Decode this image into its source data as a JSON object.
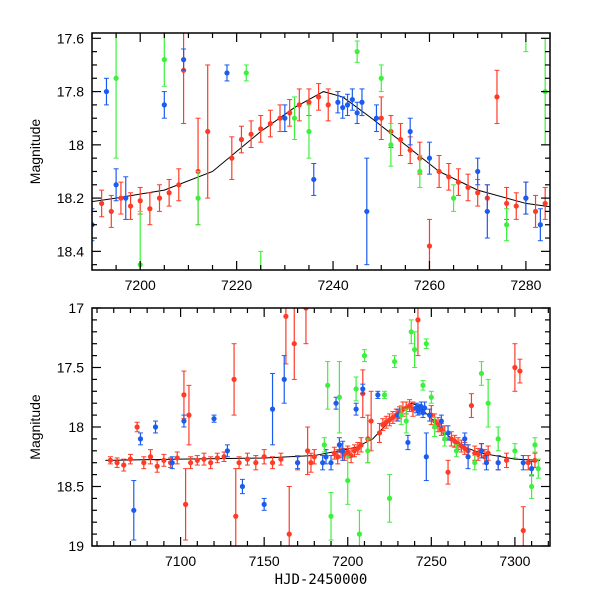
{
  "chart_data": [
    {
      "type": "scatter",
      "title": "",
      "xlabel": "",
      "ylabel": "Magnitude",
      "xlim": [
        7190,
        7285
      ],
      "ylim": [
        18.47,
        17.58
      ],
      "x_ticks": [
        "7200",
        "7220",
        "7240",
        "7260",
        "7280"
      ],
      "y_ticks": [
        "17.6",
        "17.8",
        "18",
        "18.2",
        "18.4"
      ],
      "grid": false
    },
    {
      "type": "scatter",
      "title": "",
      "xlabel": "HJD-2450000",
      "ylabel": "Magnitude",
      "xlim": [
        7047,
        7321
      ],
      "ylim": [
        19,
        17
      ],
      "x_ticks": [
        "7100",
        "7150",
        "7200",
        "7250",
        "7300"
      ],
      "y_ticks": [
        "17",
        "17.5",
        "18",
        "18.5",
        "19"
      ],
      "grid": false
    }
  ],
  "series": [
    {
      "name": "red",
      "color": "#ff3b26",
      "points": [
        [
          7058,
          18.28,
          0.03
        ],
        [
          7062,
          18.3,
          0.04
        ],
        [
          7066,
          18.32,
          0.05
        ],
        [
          7070,
          18.27,
          0.04
        ],
        [
          7074,
          18.0,
          0.04
        ],
        [
          7078,
          18.3,
          0.05
        ],
        [
          7082,
          18.25,
          0.06
        ],
        [
          7086,
          18.33,
          0.05
        ],
        [
          7090,
          18.28,
          0.05
        ],
        [
          7094,
          18.3,
          0.04
        ],
        [
          7098,
          18.26,
          0.05
        ],
        [
          7102,
          17.73,
          0.2
        ],
        [
          7103,
          18.65,
          0.3
        ],
        [
          7105,
          17.9,
          0.25
        ],
        [
          7106,
          18.3,
          0.05
        ],
        [
          7110,
          18.28,
          0.04
        ],
        [
          7114,
          18.27,
          0.05
        ],
        [
          7118,
          18.3,
          0.05
        ],
        [
          7122,
          18.26,
          0.04
        ],
        [
          7126,
          18.25,
          0.04
        ],
        [
          7132,
          17.6,
          0.3
        ],
        [
          7133,
          18.75,
          0.4
        ],
        [
          7135,
          18.3,
          0.05
        ],
        [
          7140,
          18.27,
          0.05
        ],
        [
          7145,
          18.3,
          0.06
        ],
        [
          7150,
          18.25,
          0.06
        ],
        [
          7155,
          18.3,
          0.05
        ],
        [
          7160,
          18.27,
          0.05
        ],
        [
          7163,
          17.07,
          0.4
        ],
        [
          7165,
          18.9,
          0.4
        ],
        [
          7168,
          17.3,
          0.3
        ],
        [
          7170,
          18.3,
          0.06
        ],
        [
          7175,
          17.0,
          0.3
        ],
        [
          7176,
          18.2,
          0.2
        ],
        [
          7178,
          18.3,
          0.08
        ],
        [
          7180,
          18.25,
          0.06
        ],
        [
          7192,
          18.22,
          0.05
        ],
        [
          7194,
          18.25,
          0.06
        ],
        [
          7196,
          18.2,
          0.06
        ],
        [
          7198,
          18.23,
          0.05
        ],
        [
          7200,
          18.21,
          0.05
        ],
        [
          7202,
          18.24,
          0.06
        ],
        [
          7204,
          18.2,
          0.05
        ],
        [
          7206,
          18.18,
          0.05
        ],
        [
          7208,
          18.15,
          0.06
        ],
        [
          7209,
          17.72,
          0.2
        ],
        [
          7212,
          18.1,
          0.2
        ],
        [
          7214,
          17.95,
          0.25
        ],
        [
          7219,
          18.05,
          0.08
        ],
        [
          7221,
          17.98,
          0.05
        ],
        [
          7223,
          17.96,
          0.05
        ],
        [
          7225,
          17.94,
          0.05
        ],
        [
          7227,
          17.92,
          0.05
        ],
        [
          7229,
          17.9,
          0.05
        ],
        [
          7231,
          17.88,
          0.05
        ],
        [
          7233,
          17.85,
          0.06
        ],
        [
          7235,
          17.84,
          0.05
        ],
        [
          7237,
          17.82,
          0.05
        ],
        [
          7239,
          17.85,
          0.06
        ],
        [
          7242,
          17.1,
          0.3
        ],
        [
          7250,
          17.9,
          0.08
        ],
        [
          7252,
          17.95,
          0.06
        ],
        [
          7254,
          17.98,
          0.06
        ],
        [
          7256,
          18.02,
          0.05
        ],
        [
          7258,
          18.05,
          0.06
        ],
        [
          7260,
          18.38,
          0.1
        ],
        [
          7262,
          18.1,
          0.06
        ],
        [
          7264,
          18.12,
          0.05
        ],
        [
          7266,
          18.14,
          0.05
        ],
        [
          7268,
          18.16,
          0.05
        ],
        [
          7270,
          18.18,
          0.05
        ],
        [
          7272,
          18.2,
          0.05
        ],
        [
          7274,
          17.82,
          0.1
        ],
        [
          7276,
          18.22,
          0.06
        ],
        [
          7278,
          18.23,
          0.05
        ],
        [
          7280,
          18.2,
          0.06
        ],
        [
          7282,
          18.25,
          0.06
        ],
        [
          7284,
          18.22,
          0.06
        ],
        [
          7290,
          18.3,
          0.06
        ],
        [
          7295,
          18.28,
          0.06
        ],
        [
          7300,
          17.5,
          0.2
        ],
        [
          7303,
          17.53,
          0.1
        ],
        [
          7305,
          18.87,
          0.2
        ],
        [
          7308,
          18.3,
          0.06
        ],
        [
          7312,
          18.28,
          0.06
        ]
      ]
    },
    {
      "name": "blue",
      "color": "#1a5cf0",
      "points": [
        [
          7072,
          18.7,
          0.25
        ],
        [
          7076,
          18.1,
          0.05
        ],
        [
          7085,
          18.0,
          0.05
        ],
        [
          7095,
          18.3,
          0.05
        ],
        [
          7102,
          17.95,
          0.05
        ],
        [
          7120,
          17.93,
          0.03
        ],
        [
          7128,
          18.2,
          0.05
        ],
        [
          7137,
          18.5,
          0.06
        ],
        [
          7150,
          18.65,
          0.05
        ],
        [
          7155,
          17.85,
          0.3
        ],
        [
          7162,
          17.6,
          0.2
        ],
        [
          7170,
          18.3,
          0.05
        ],
        [
          7185,
          18.3,
          0.06
        ],
        [
          7187,
          18.25,
          0.06
        ],
        [
          7190,
          18.3,
          0.06
        ],
        [
          7193,
          17.8,
          0.05
        ],
        [
          7195,
          18.15,
          0.06
        ],
        [
          7197,
          18.2,
          0.08
        ],
        [
          7205,
          17.85,
          0.05
        ],
        [
          7209,
          17.68,
          0.04
        ],
        [
          7218,
          17.73,
          0.03
        ],
        [
          7230,
          17.9,
          0.05
        ],
        [
          7236,
          18.13,
          0.06
        ],
        [
          7241,
          17.84,
          0.04
        ],
        [
          7242,
          17.86,
          0.04
        ],
        [
          7243,
          17.85,
          0.04
        ],
        [
          7244,
          17.83,
          0.04
        ],
        [
          7245,
          17.88,
          0.04
        ],
        [
          7246,
          17.84,
          0.05
        ],
        [
          7247,
          18.25,
          0.2
        ],
        [
          7249,
          17.9,
          0.05
        ],
        [
          7256,
          17.95,
          0.05
        ],
        [
          7260,
          18.05,
          0.06
        ],
        [
          7270,
          18.1,
          0.05
        ],
        [
          7272,
          18.25,
          0.1
        ],
        [
          7280,
          18.2,
          0.06
        ],
        [
          7283,
          18.3,
          0.06
        ],
        [
          7290,
          18.3,
          0.06
        ],
        [
          7305,
          18.3,
          0.06
        ],
        [
          7310,
          18.35,
          0.06
        ]
      ]
    },
    {
      "name": "green",
      "color": "#3ef03e",
      "points": [
        [
          7186,
          18.15,
          0.06
        ],
        [
          7188,
          17.65,
          0.2
        ],
        [
          7190,
          18.75,
          0.2
        ],
        [
          7195,
          17.75,
          0.3
        ],
        [
          7200,
          18.45,
          0.2
        ],
        [
          7205,
          17.68,
          0.1
        ],
        [
          7207,
          18.9,
          0.2
        ],
        [
          7210,
          17.4,
          0.05
        ],
        [
          7212,
          18.2,
          0.1
        ],
        [
          7222,
          17.73,
          0.03
        ],
        [
          7225,
          18.6,
          0.2
        ],
        [
          7228,
          17.45,
          0.05
        ],
        [
          7232,
          17.9,
          0.08
        ],
        [
          7235,
          17.95,
          0.1
        ],
        [
          7238,
          17.2,
          0.1
        ],
        [
          7240,
          17.35,
          0.15
        ],
        [
          7245,
          17.65,
          0.04
        ],
        [
          7247,
          17.3,
          0.04
        ],
        [
          7250,
          17.75,
          0.05
        ],
        [
          7252,
          18.0,
          0.08
        ],
        [
          7258,
          18.1,
          0.06
        ],
        [
          7265,
          18.2,
          0.05
        ],
        [
          7276,
          18.3,
          0.06
        ],
        [
          7280,
          17.55,
          0.1
        ],
        [
          7284,
          17.8,
          0.2
        ],
        [
          7290,
          18.1,
          0.1
        ],
        [
          7300,
          18.2,
          0.06
        ],
        [
          7310,
          18.5,
          0.1
        ],
        [
          7312,
          18.15,
          0.06
        ],
        [
          7314,
          18.35,
          0.08
        ]
      ]
    }
  ],
  "model": [
    [
      7055,
      18.28
    ],
    [
      7100,
      18.27
    ],
    [
      7150,
      18.26
    ],
    [
      7180,
      18.24
    ],
    [
      7195,
      18.2
    ],
    [
      7205,
      18.17
    ],
    [
      7215,
      18.1
    ],
    [
      7225,
      17.95
    ],
    [
      7232,
      17.86
    ],
    [
      7238,
      17.8
    ],
    [
      7242,
      17.82
    ],
    [
      7248,
      17.9
    ],
    [
      7255,
      18.0
    ],
    [
      7262,
      18.1
    ],
    [
      7270,
      18.17
    ],
    [
      7280,
      18.22
    ],
    [
      7300,
      18.27
    ],
    [
      7315,
      18.28
    ]
  ]
}
